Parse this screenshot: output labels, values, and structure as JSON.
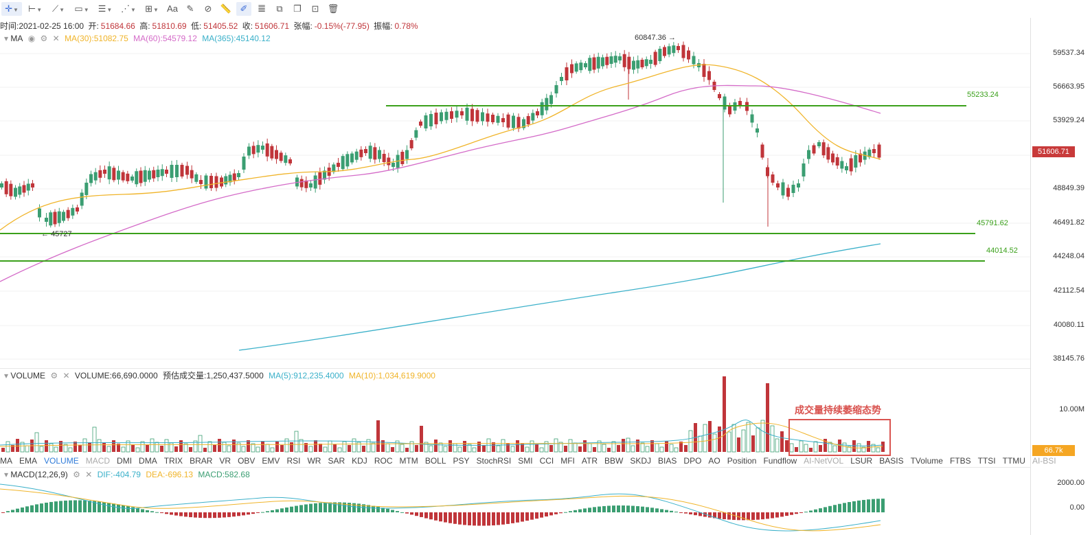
{
  "toolbar": {
    "items": [
      {
        "name": "crosshair-tool",
        "glyph": "✛",
        "caret": true,
        "active": true
      },
      {
        "name": "horizontal-ray-tool",
        "glyph": "⊢",
        "caret": true
      },
      {
        "name": "trendline-tool",
        "glyph": "⟋",
        "caret": true
      },
      {
        "name": "rectangle-tool",
        "glyph": "▭",
        "caret": true
      },
      {
        "name": "fib-tool",
        "glyph": "☰",
        "caret": true
      },
      {
        "name": "pattern-tool",
        "glyph": "⋰",
        "caret": true
      },
      {
        "name": "measure-tool",
        "glyph": "⊞",
        "caret": true
      },
      {
        "name": "text-tool",
        "glyph": "Aa",
        "caret": false
      },
      {
        "name": "brush-tool",
        "glyph": "✎",
        "caret": false
      },
      {
        "name": "magnet-tool",
        "glyph": "⊘",
        "caret": false
      },
      {
        "name": "ruler-tool",
        "glyph": "📏",
        "caret": false
      },
      {
        "name": "pencil-tool",
        "glyph": "✐",
        "caret": false,
        "active": true
      },
      {
        "name": "lock-tool",
        "glyph": "𝍤",
        "caret": false
      },
      {
        "name": "copy-tool",
        "glyph": "⧉",
        "caret": false
      },
      {
        "name": "clone-tool",
        "glyph": "❐",
        "caret": false
      },
      {
        "name": "hide-tool",
        "glyph": "⊡",
        "caret": false
      },
      {
        "name": "delete-tool",
        "glyph": "🗑",
        "caret": false
      }
    ]
  },
  "ohlc": {
    "time": "时间:2021-02-25 16:00",
    "open_label": "开:",
    "open": "51684.66",
    "high_label": "高:",
    "high": "51810.69",
    "low_label": "低:",
    "low": "51405.52",
    "close_label": "收:",
    "close": "51606.71",
    "change_label": "张幅:",
    "change": "-0.15%(-77.95)",
    "amp_label": "振幅:",
    "amp": "0.78%"
  },
  "ma": {
    "title": "MA",
    "ma30": "MA(30):51082.75",
    "ma60": "MA(60):54579.12",
    "ma365": "MA(365):45140.12",
    "color30": "#f0b429",
    "color60": "#d46bc8",
    "color365": "#3ab0c9"
  },
  "volume_info": {
    "title": "VOLUME",
    "value": "VOLUME:66,690.0000",
    "est": "预估成交量:1,250,437.5000",
    "ma5": "MA(5):912,235.4000",
    "ma10": "MA(10):1,034,619.9000"
  },
  "macd_info": {
    "title": "MACD(12,26,9)",
    "dif": "DIF:-404.79",
    "dea": "DEA:-696.13",
    "macd": "MACD:582.68"
  },
  "indicator_tabs": [
    "MA",
    "EMA",
    "VOLUME",
    "MACD",
    "DMI",
    "DMA",
    "TRIX",
    "BRAR",
    "VR",
    "OBV",
    "EMV",
    "RSI",
    "WR",
    "SAR",
    "KDJ",
    "ROC",
    "MTM",
    "BOLL",
    "PSY",
    "StochRSI",
    "SMI",
    "CCI",
    "MFI",
    "ATR",
    "BBW",
    "SKDJ",
    "BIAS",
    "DPO",
    "AO",
    "Position",
    "Fundflow",
    "AI-NetVOL",
    "LSUR",
    "BASIS",
    "TVolume",
    "FTBS",
    "TTSI",
    "TTMU",
    "AI-BSI"
  ],
  "price_axis": [
    "59537.34",
    "56663.95",
    "53929.24",
    "51606.71",
    "48849.39",
    "46491.82",
    "44248.04",
    "42112.54",
    "40080.11",
    "38145.76"
  ],
  "volume_axis": [
    "10.00M"
  ],
  "volume_tag": "66.7k",
  "macd_axis": [
    "2000.00",
    "0.00"
  ],
  "levels": [
    "55233.24",
    "45791.62",
    "44014.52"
  ],
  "peak_label": "60847.36",
  "trough_label": "45727",
  "annotation": "成交量持续萎缩态势",
  "colors": {
    "up": "#3b9e72",
    "down": "#c0353a",
    "level": "#3aa01a",
    "accent": "#2f7bd8"
  }
}
